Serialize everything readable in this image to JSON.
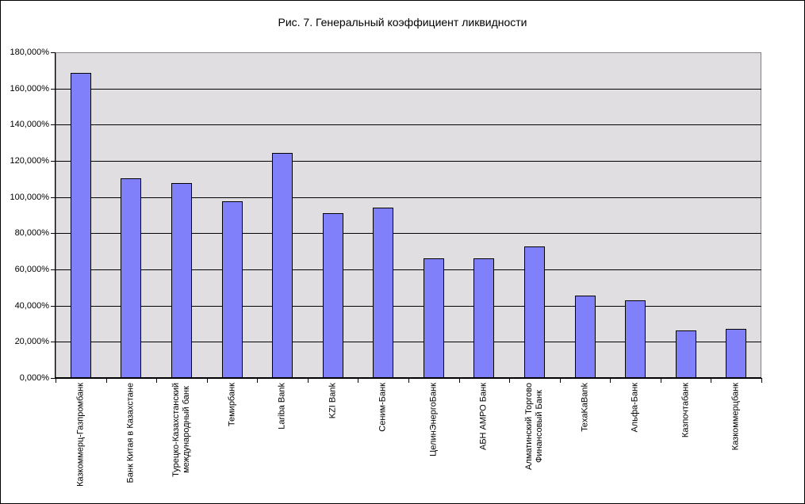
{
  "chart_data": {
    "type": "bar",
    "title": "Рис. 7. Генеральный коэффициент ликвидности",
    "categories": [
      "Казкоммерц-Газпромбанк",
      "Банк Китая в Казахстане",
      "Турецко-Казахстанский\nмеждународный банк",
      "Темирбанк",
      "Lariba Bank",
      "KZI Bank",
      "Сеним-Банк",
      "ЦелинЭнергоБанк",
      "АБН АМРО Банк",
      "Алматинский Торгово\nФинансовый Банк",
      "TexaKaBank",
      "Альфа-Банк",
      "Казпочтабанк",
      "Казкоммерцбанк"
    ],
    "values": [
      168.8,
      110.5,
      107.9,
      97.8,
      124.5,
      91.2,
      94.3,
      66.2,
      66.2,
      72.8,
      45.6,
      43.0,
      26.3,
      27.2
    ],
    "unit": "%",
    "xlabel": "",
    "ylabel": "",
    "ylim": [
      0,
      180
    ],
    "grid": true,
    "legend": null,
    "y_axis": {
      "tick_values": [
        0,
        20,
        40,
        60,
        80,
        100,
        120,
        140,
        160,
        180
      ],
      "tick_labels": [
        "0,000%",
        "20,000%",
        "40,000%",
        "60,000%",
        "80,000%",
        "100,000%",
        "120,000%",
        "140,000%",
        "160,000%",
        "180,000%"
      ]
    },
    "colors": {
      "bar_fill": "#8080FA",
      "bar_border": "#000000",
      "plot_bg": "#E1DEE1",
      "plot_border": "#848284",
      "gridline": "#000000",
      "axis": "#000000",
      "text": "#000000",
      "background": "#FFFFFF"
    }
  }
}
